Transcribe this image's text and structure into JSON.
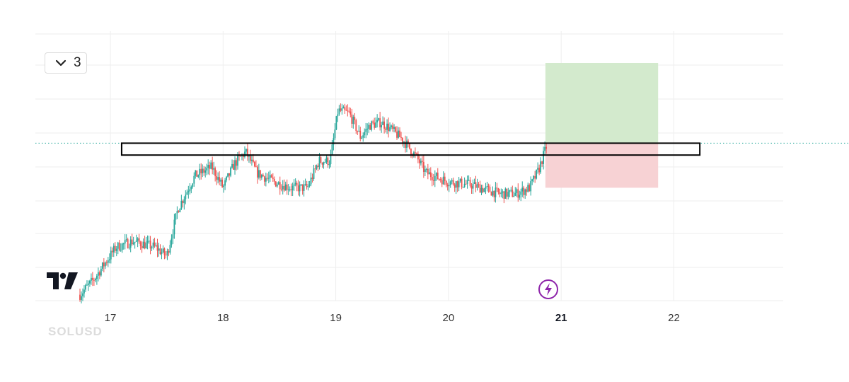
{
  "interval_button": {
    "icon": "chevron-down-icon",
    "label": "3"
  },
  "logo": {
    "name": "tradingview-logo-icon"
  },
  "event_marker": {
    "icon": "lightning-bolt-icon",
    "color": "#8e24aa"
  },
  "faded_symbol": "SOLUSD",
  "colors": {
    "up": "#26a69a",
    "down": "#ef5350",
    "grid": "#eeeeee",
    "last_price_line": "#26a69a",
    "profit_zone": "#d3eacd",
    "loss_zone": "#f7d2d4",
    "box_outline": "#000000"
  },
  "chart_data": {
    "type": "candlestick",
    "title": "",
    "xlabel": "",
    "ylabel": "",
    "x_tick_labels": [
      "17",
      "18",
      "19",
      "20",
      "21",
      "22"
    ],
    "highlighted_x_tick": "21",
    "xlim": [
      16.45,
      23.0
    ],
    "ylim": [
      0,
      100
    ],
    "price_axis": "hidden (values relative 0-100)",
    "grid": true,
    "legend": "none",
    "price_path_anchors": [
      [
        16.73,
        2
      ],
      [
        16.85,
        7
      ],
      [
        17.05,
        18
      ],
      [
        17.2,
        20
      ],
      [
        17.4,
        18
      ],
      [
        17.5,
        15
      ],
      [
        17.6,
        31
      ],
      [
        17.75,
        42
      ],
      [
        17.9,
        45
      ],
      [
        18.0,
        38
      ],
      [
        18.1,
        46
      ],
      [
        18.2,
        50
      ],
      [
        18.3,
        43
      ],
      [
        18.45,
        40
      ],
      [
        18.6,
        38
      ],
      [
        18.75,
        38
      ],
      [
        18.85,
        47
      ],
      [
        18.95,
        47
      ],
      [
        19.02,
        64
      ],
      [
        19.12,
        63
      ],
      [
        19.22,
        55
      ],
      [
        19.3,
        59
      ],
      [
        19.4,
        60
      ],
      [
        19.48,
        58
      ],
      [
        19.6,
        54
      ],
      [
        19.72,
        48
      ],
      [
        19.8,
        43
      ],
      [
        20.0,
        40
      ],
      [
        20.2,
        39
      ],
      [
        20.45,
        36
      ],
      [
        20.6,
        36
      ],
      [
        20.72,
        38
      ],
      [
        20.8,
        44
      ],
      [
        20.87,
        52
      ]
    ],
    "horizontal_zone": {
      "x_start": 17.1,
      "x_end": 22.23,
      "y_top": 53,
      "y_bottom": 49
    },
    "long_position": {
      "x_start": 20.86,
      "x_end": 21.86,
      "entry": 53,
      "target": 80,
      "stop": 38
    },
    "last_price_line": 53
  }
}
